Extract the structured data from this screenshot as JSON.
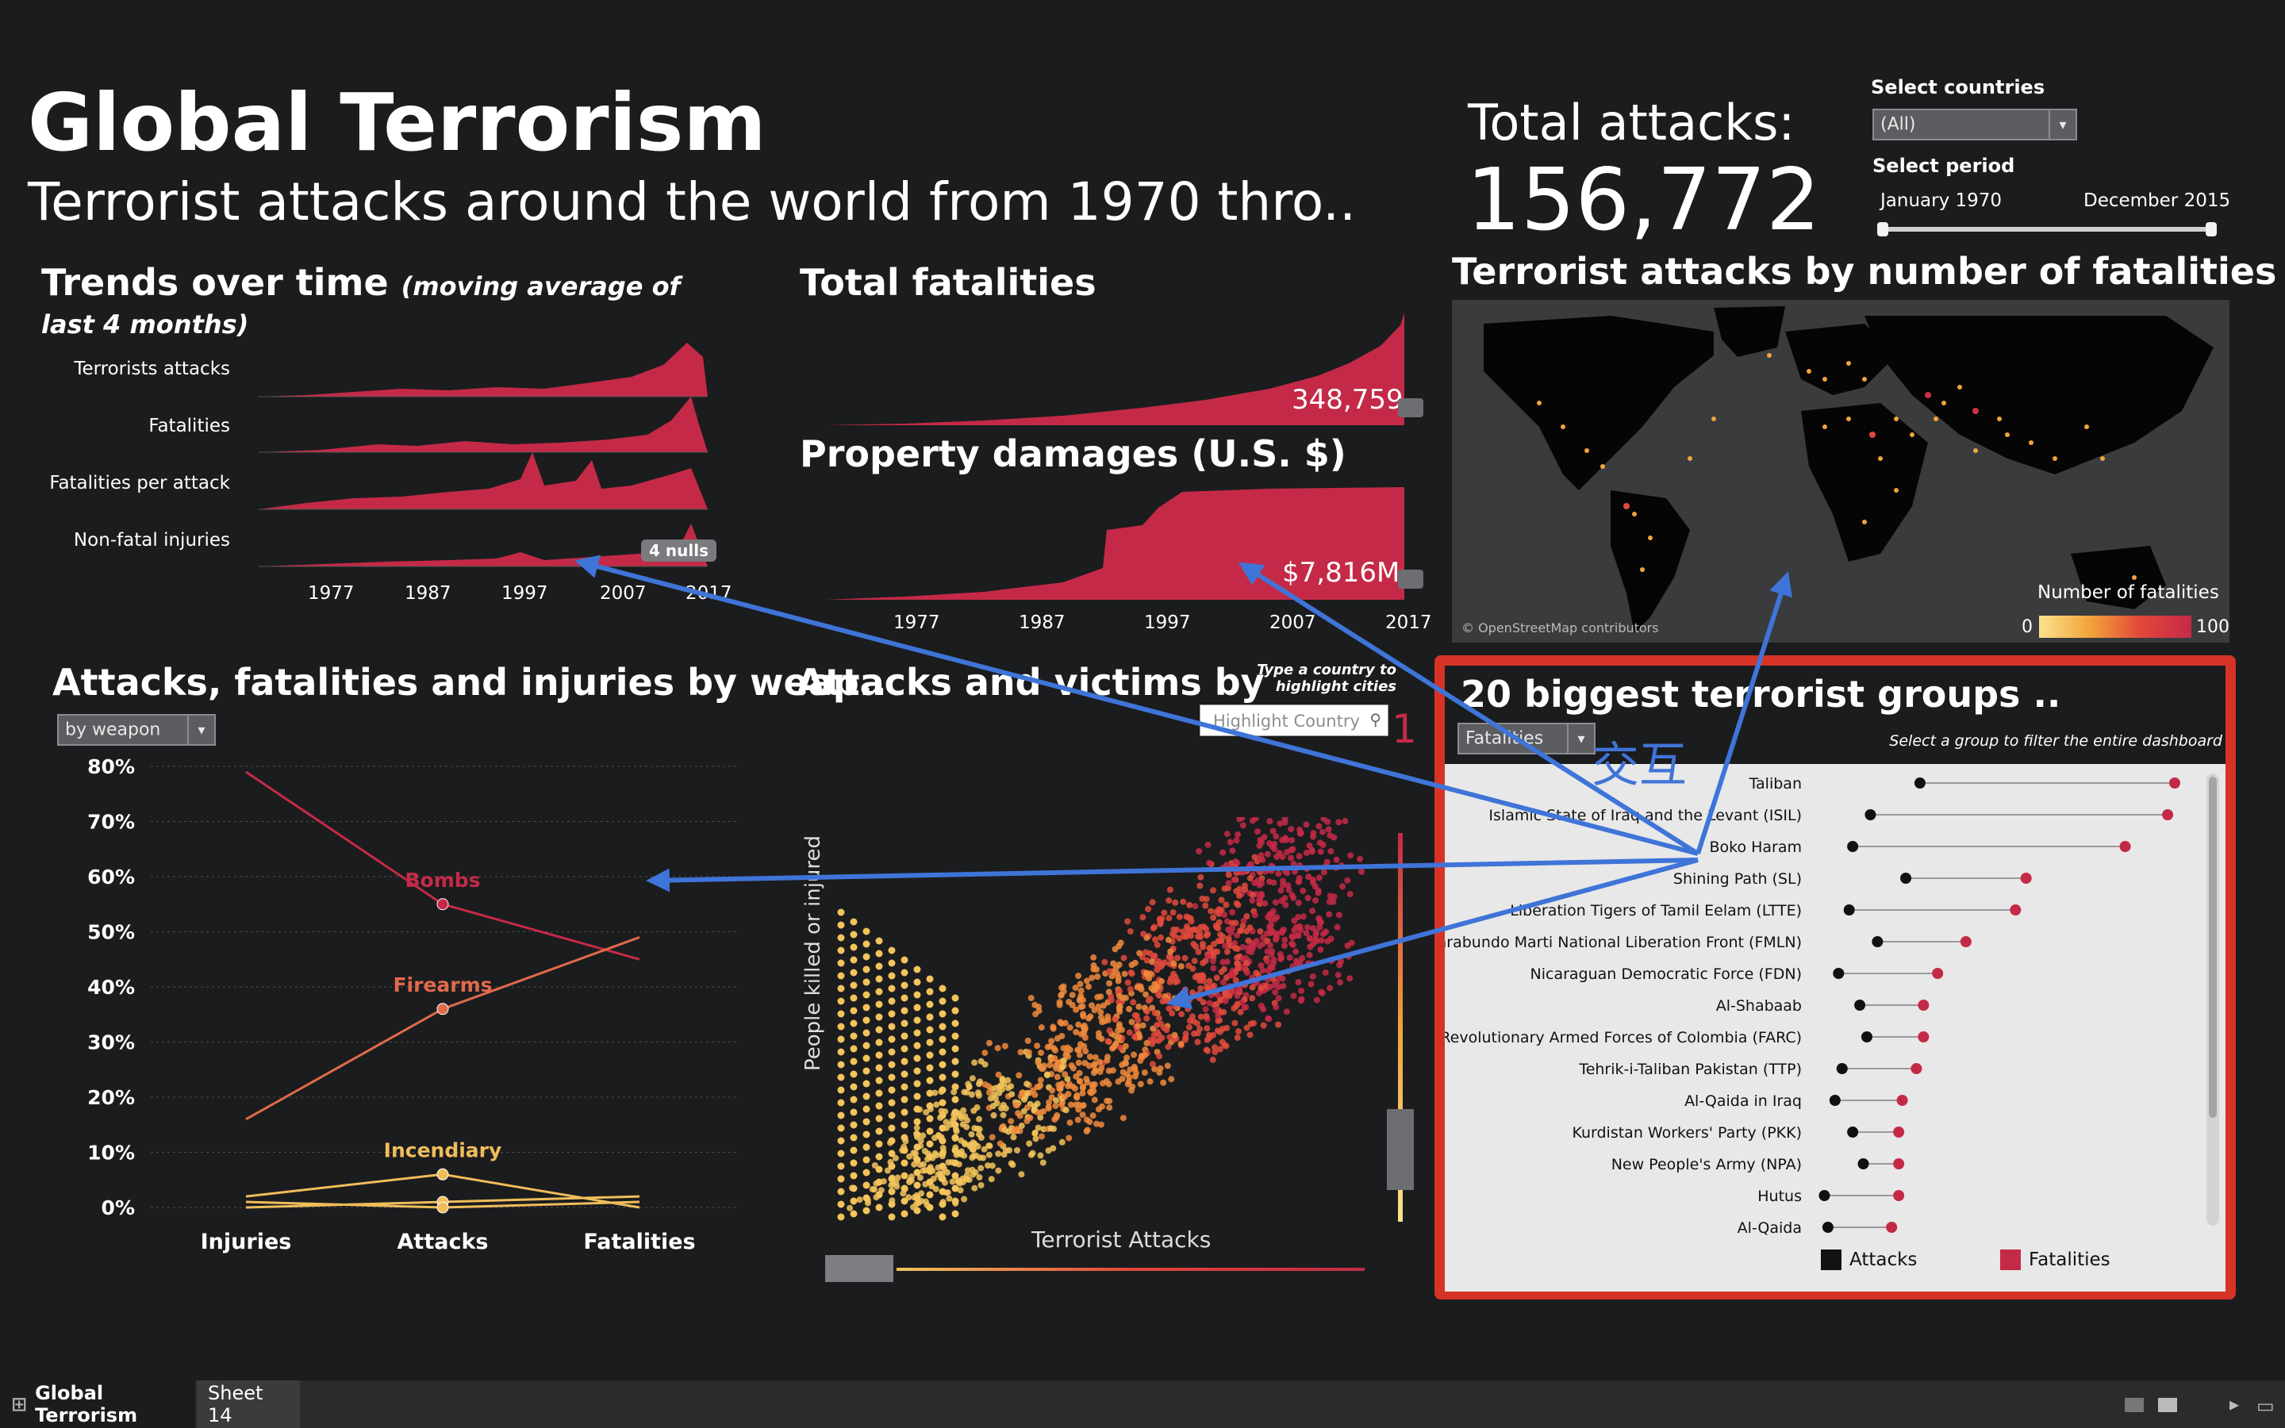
{
  "header": {
    "title": "Global Terrorism",
    "subtitle": "Terrorist attacks around the world from 1970 thro.."
  },
  "totals": {
    "label": "Total attacks:",
    "value": "156,772"
  },
  "filters": {
    "countries_label": "Select countries",
    "countries_value": "(All)",
    "period_label": "Select period",
    "period_start": "January 1970",
    "period_end": "December 2015"
  },
  "trends": {
    "title": "Trends over time",
    "title_note": "(moving average of last 4 months)",
    "rows": [
      "Terrorists attacks",
      "Fatalities",
      "Fatalities per attack",
      "Non-fatal injuries"
    ],
    "nulls_badge": "4 nulls",
    "x_ticks": [
      "1977",
      "1987",
      "1997",
      "2007",
      "2017"
    ]
  },
  "fatalities": {
    "title": "Total fatalities",
    "value": "348,759"
  },
  "damages": {
    "title": "Property damages (U.S. $)",
    "value": "$7,816M",
    "x_ticks": [
      "1977",
      "1987",
      "1997",
      "2007",
      "2017"
    ]
  },
  "map": {
    "title": "Terrorist attacks by number of fatalities",
    "attribution": "© OpenStreetMap contributors",
    "legend_title": "Number of fatalities",
    "legend_min": "0",
    "legend_max": "100"
  },
  "weapons": {
    "title": "Attacks, fatalities and injuries by weap..",
    "dropdown": "by weapon",
    "chart_data": {
      "type": "line",
      "categories": [
        "Injuries",
        "Attacks",
        "Fatalities"
      ],
      "y_ticks": [
        "80%",
        "70%",
        "60%",
        "50%",
        "40%",
        "30%",
        "20%",
        "10%",
        "0%"
      ],
      "ylim": [
        0,
        80
      ],
      "series": [
        {
          "name": "Bombs",
          "values": [
            79,
            55,
            45
          ],
          "color": "#c42a47"
        },
        {
          "name": "Firearms",
          "values": [
            16,
            36,
            49
          ],
          "color": "#e06a4a"
        },
        {
          "name": "Incendiary",
          "values": [
            2,
            6,
            0
          ],
          "color": "#f0bd5a"
        },
        {
          "values": [
            0,
            1,
            2
          ],
          "color": "#f0bd5a"
        },
        {
          "values": [
            1,
            0,
            1
          ],
          "color": "#f0bd5a"
        }
      ]
    }
  },
  "scatter": {
    "title": "Attacks and victims by",
    "hint": "Type a country to highlight cities",
    "search_placeholder": "Highlight Country",
    "y_label": "People killed or injured",
    "x_label": "Terrorist Attacks",
    "marker": "1"
  },
  "groups": {
    "title": "20 biggest terrorist groups ..",
    "dropdown": "Fatalities",
    "hint": "Select a group to filter the entire dashboard",
    "annotation": "交互",
    "chart_data": {
      "type": "scatter",
      "categories": [
        "Taliban",
        "Islamic State of Iraq and the Levant (ISIL)",
        "Boko Haram",
        "Shining Path (SL)",
        "Liberation Tigers of Tamil Eelam (LTTE)",
        "Farabundo Marti National Liberation Front (FMLN)",
        "Nicaraguan Democratic Force (FDN)",
        "Al-Shabaab",
        "Revolutionary Armed Forces of Colombia (FARC)",
        "Tehrik-i-Taliban Pakistan (TTP)",
        "Al-Qaida in Iraq",
        "Kurdistan Workers' Party (PKK)",
        "New People's Army (NPA)",
        "Hutus",
        "Al-Qaida"
      ],
      "series": [
        {
          "name": "Attacks",
          "values": [
            28,
            14,
            9,
            24,
            8,
            16,
            5,
            11,
            13,
            6,
            4,
            9,
            12,
            1,
            2
          ],
          "color": "#111111"
        },
        {
          "name": "Fatalities",
          "values": [
            100,
            98,
            86,
            58,
            55,
            41,
            33,
            29,
            29,
            27,
            23,
            22,
            22,
            22,
            20
          ],
          "color": "#c42a47"
        }
      ]
    }
  },
  "footer": {
    "tab_active": "Global Terrorism",
    "tab_other": "Sheet 14"
  },
  "colors": {
    "background": "#1b1c1e",
    "accent": "#c42a47",
    "highlight_border": "#d63327",
    "annotation_arrow": "#3f74d8"
  }
}
